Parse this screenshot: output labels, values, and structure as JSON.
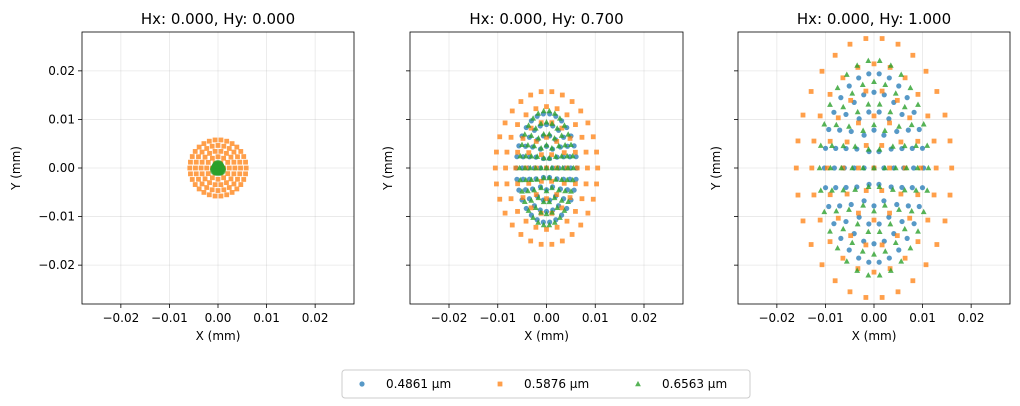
{
  "chart_data": [
    {
      "type": "scatter",
      "title": "Hx: 0.000, Hy: 0.000",
      "xlabel": "X (mm)",
      "ylabel": "Y (mm)",
      "xlim": [
        -0.028,
        0.028
      ],
      "ylim": [
        -0.028,
        0.028
      ],
      "xticks": [
        -0.02,
        -0.01,
        0.0,
        0.01,
        0.02
      ],
      "yticks": [
        -0.02,
        -0.01,
        0.0,
        0.01,
        0.02
      ],
      "show_yticklabels": true,
      "grid": true,
      "series_params": [
        {
          "ax": 0.0006,
          "ay": 0.0006
        },
        {
          "ax": 0.0058,
          "ay": 0.0058
        },
        {
          "ax": 0.0011,
          "ay": 0.0011
        }
      ]
    },
    {
      "type": "scatter",
      "title": "Hx: 0.000, Hy: 0.700",
      "xlabel": "X (mm)",
      "ylabel": "Y (mm)",
      "xlim": [
        -0.028,
        0.028
      ],
      "ylim": [
        -0.028,
        0.028
      ],
      "xticks": [
        -0.02,
        -0.01,
        0.0,
        0.01,
        0.02
      ],
      "yticks": [
        -0.02,
        -0.01,
        0.0,
        0.01,
        0.02
      ],
      "show_yticklabels": false,
      "grid": true,
      "series_params": [
        {
          "ax": 0.0062,
          "ay": 0.0112
        },
        {
          "ax": 0.0105,
          "ay": 0.0158
        },
        {
          "ax": 0.0055,
          "ay": 0.0118
        }
      ]
    },
    {
      "type": "scatter",
      "title": "Hx: 0.000, Hy: 1.000",
      "xlabel": "X (mm)",
      "ylabel": "Y (mm)",
      "xlim": [
        -0.028,
        0.028
      ],
      "ylim": [
        -0.028,
        0.028
      ],
      "xticks": [
        -0.02,
        -0.01,
        0.0,
        0.01,
        0.02
      ],
      "yticks": [
        -0.02,
        -0.01,
        0.0,
        0.01,
        0.02
      ],
      "show_yticklabels": false,
      "grid": true,
      "series_params": [
        {
          "ax": 0.0102,
          "ay": 0.0195
        },
        {
          "ax": 0.016,
          "ay": 0.0268
        },
        {
          "ax": 0.0112,
          "ay": 0.0222
        }
      ]
    }
  ],
  "legend": {
    "placement": "bottom-center",
    "entries": [
      {
        "label": "0.4861 µm",
        "color": "#1f77b4",
        "marker": "circle"
      },
      {
        "label": "0.5876 µm",
        "color": "#ff7f0e",
        "marker": "square"
      },
      {
        "label": "0.6563 µm",
        "color": "#2ca02c",
        "marker": "triangle"
      }
    ]
  }
}
